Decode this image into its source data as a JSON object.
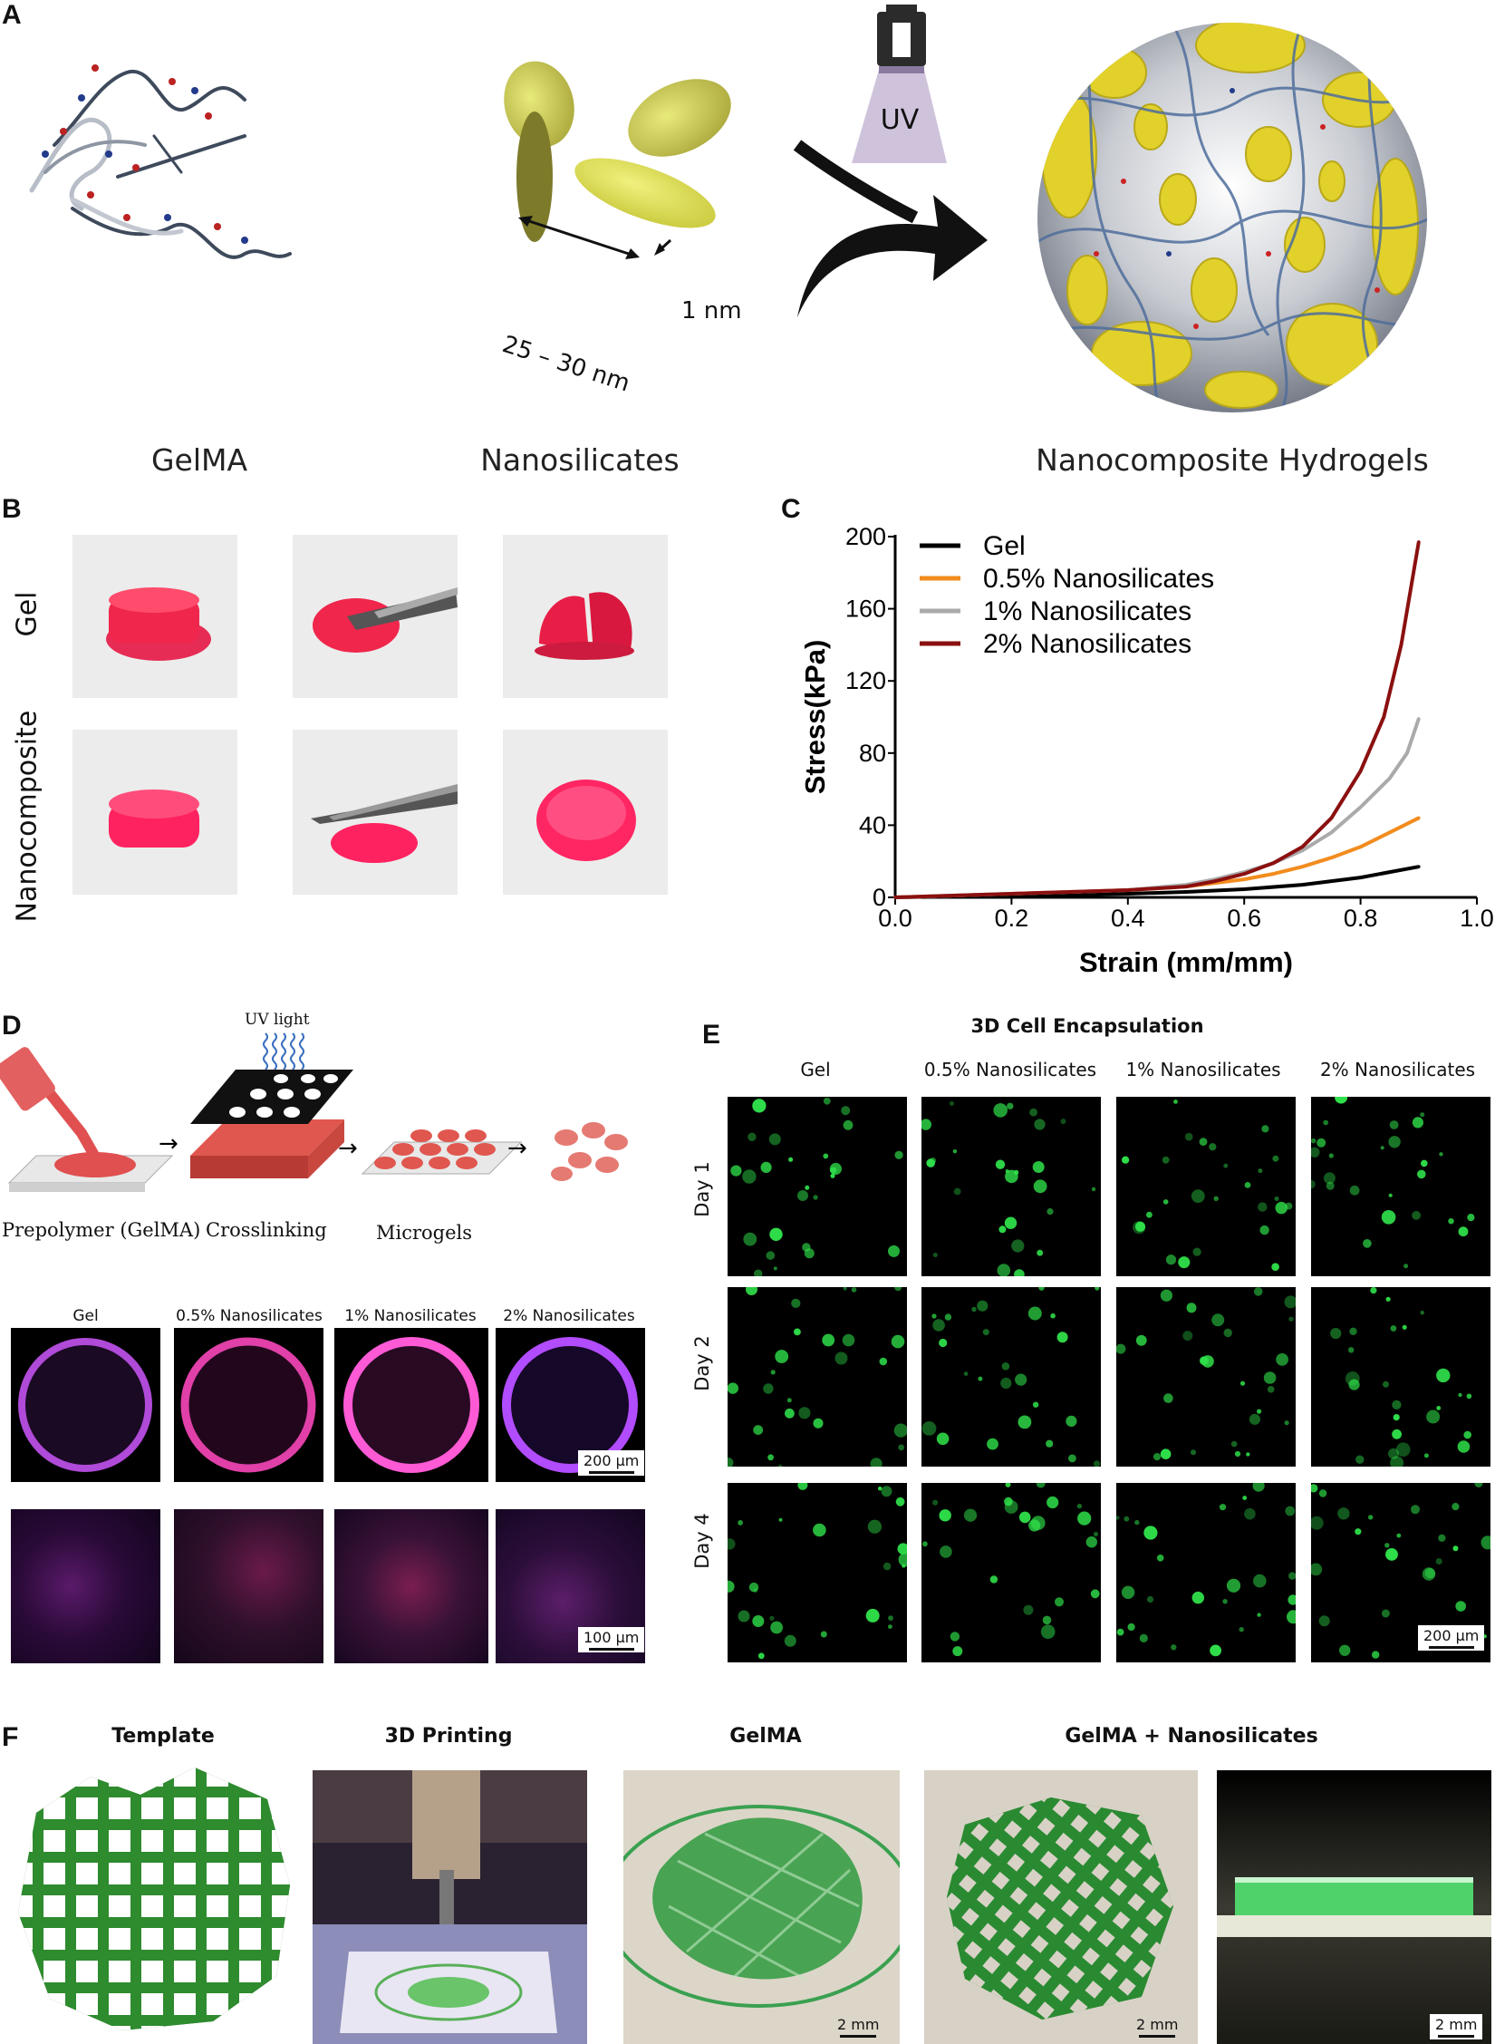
{
  "panels": {
    "A": "A",
    "B": "B",
    "C": "C",
    "D": "D",
    "E": "E",
    "F": "F"
  },
  "panel_a": {
    "captions": [
      "GelMA",
      "Nanosilicates",
      "Nanocomposite Hydrogels"
    ],
    "size_label_1": "25 – 30 nm",
    "size_label_2": "1 nm",
    "uv_label": "UV"
  },
  "panel_b": {
    "row_labels": [
      "Gel",
      "Nanocomposite"
    ]
  },
  "chart_data": {
    "type": "line",
    "title": "",
    "xlabel": "Strain (mm/mm)",
    "ylabel": "Stress(kPa)",
    "xlim": [
      0.0,
      1.0
    ],
    "ylim": [
      0,
      200
    ],
    "xticks": [
      "0.0",
      "0.2",
      "0.4",
      "0.6",
      "0.8",
      "1.0"
    ],
    "yticks": [
      "0",
      "40",
      "80",
      "120",
      "160",
      "200"
    ],
    "legend_position": "top-left",
    "series": [
      {
        "name": "Gel",
        "color": "#000000",
        "x": [
          0.0,
          0.1,
          0.2,
          0.3,
          0.4,
          0.5,
          0.6,
          0.7,
          0.8,
          0.85,
          0.9
        ],
        "y": [
          0,
          0.5,
          1,
          1.5,
          2,
          3,
          4.5,
          7,
          11,
          14,
          17
        ]
      },
      {
        "name": "0.5% Nanosilicates",
        "color": "#f28c1e",
        "x": [
          0.0,
          0.1,
          0.2,
          0.3,
          0.4,
          0.5,
          0.6,
          0.65,
          0.7,
          0.75,
          0.8,
          0.85,
          0.9
        ],
        "y": [
          0,
          1,
          2,
          3,
          4,
          6,
          10,
          13,
          17,
          22,
          28,
          36,
          44
        ]
      },
      {
        "name": "1% Nanosilicates",
        "color": "#aaaaaa",
        "x": [
          0.0,
          0.1,
          0.2,
          0.3,
          0.4,
          0.5,
          0.55,
          0.6,
          0.65,
          0.7,
          0.75,
          0.8,
          0.85,
          0.88,
          0.9
        ],
        "y": [
          0,
          1,
          2,
          3,
          4,
          7,
          10,
          14,
          19,
          26,
          36,
          50,
          66,
          80,
          99
        ]
      },
      {
        "name": "2% Nanosilicates",
        "color": "#8b1010",
        "x": [
          0.0,
          0.1,
          0.2,
          0.3,
          0.4,
          0.5,
          0.55,
          0.6,
          0.65,
          0.7,
          0.75,
          0.8,
          0.84,
          0.87,
          0.9
        ],
        "y": [
          0,
          1,
          2,
          3,
          4,
          6,
          9,
          13,
          19,
          28,
          44,
          70,
          100,
          140,
          197
        ]
      }
    ]
  },
  "panel_d": {
    "uv_light": "UV light",
    "steps": [
      "Prepolymer (GelMA)",
      "Crosslinking",
      "Microgels"
    ],
    "columns": [
      "Gel",
      "0.5% Nanosilicates",
      "1% Nanosilicates",
      "2% Nanosilicates"
    ],
    "scale_1": "200 µm",
    "scale_2": "100 µm"
  },
  "panel_e": {
    "title": "3D Cell Encapsulation",
    "columns": [
      "Gel",
      "0.5% Nanosilicates",
      "1% Nanosilicates",
      "2% Nanosilicates"
    ],
    "rows": [
      "Day 1",
      "Day 2",
      "Day 4"
    ],
    "scale": "200 µm"
  },
  "panel_f": {
    "titles": [
      "Template",
      "3D Printing",
      "GelMA",
      "GelMA + Nanosilicates"
    ],
    "scale": "2 mm"
  }
}
